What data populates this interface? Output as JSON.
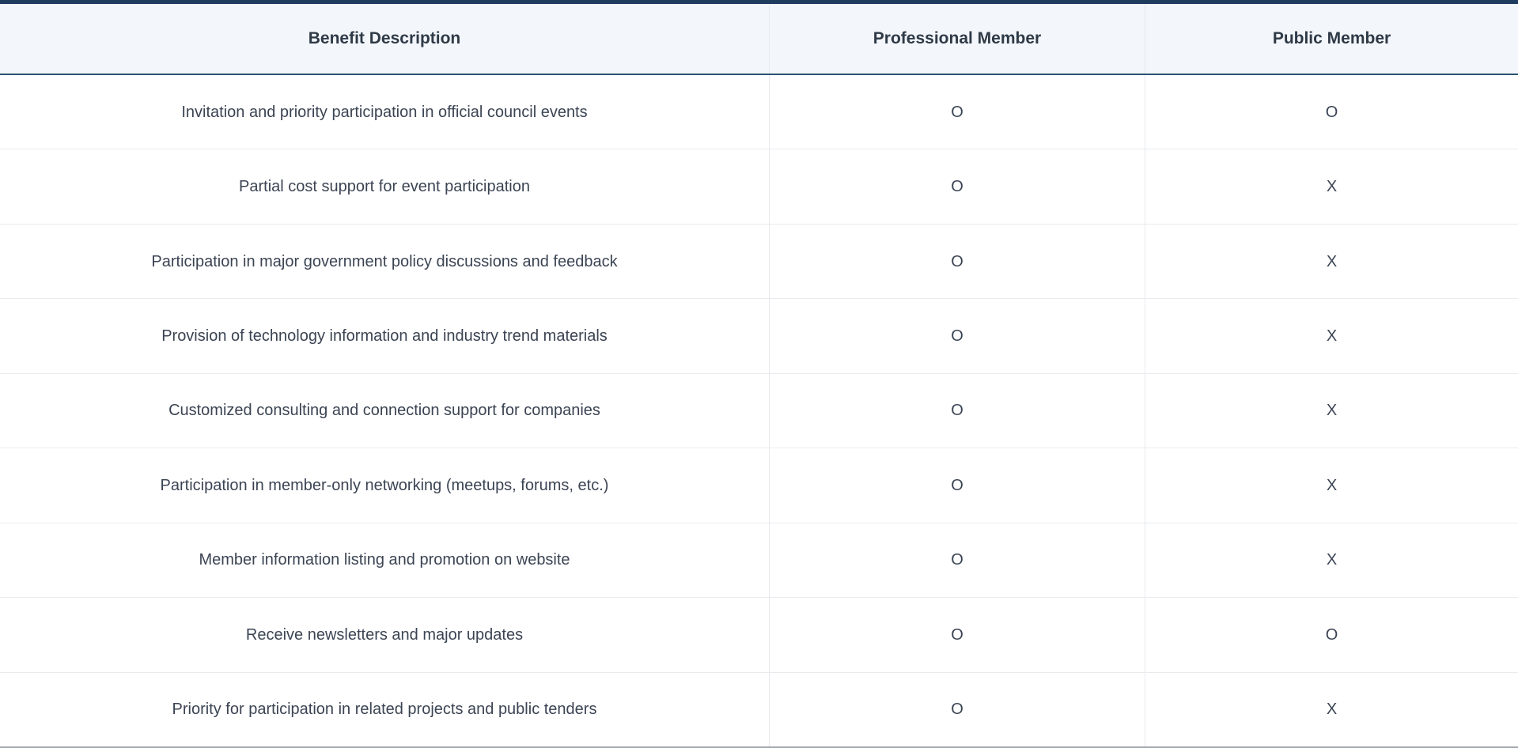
{
  "table": {
    "headers": [
      "Benefit Description",
      "Professional Member",
      "Public Member"
    ],
    "rows": [
      {
        "benefit": "Invitation and priority participation in official council events",
        "professional": "O",
        "public": "O"
      },
      {
        "benefit": "Partial cost support for event participation",
        "professional": "O",
        "public": "X"
      },
      {
        "benefit": "Participation in major government policy discussions and feedback",
        "professional": "O",
        "public": "X"
      },
      {
        "benefit": "Provision of technology information and industry trend materials",
        "professional": "O",
        "public": "X"
      },
      {
        "benefit": "Customized consulting and connection support for companies",
        "professional": "O",
        "public": "X"
      },
      {
        "benefit": "Participation in member-only networking (meetups, forums, etc.)",
        "professional": "O",
        "public": "X"
      },
      {
        "benefit": "Member information listing and promotion on website",
        "professional": "O",
        "public": "X"
      },
      {
        "benefit": "Receive newsletters and major updates",
        "professional": "O",
        "public": "O"
      },
      {
        "benefit": "Priority for participation in related projects and public tenders",
        "professional": "O",
        "public": "X"
      }
    ]
  },
  "colors": {
    "top_border": "#1d3c5e",
    "header_bg": "#f3f6fa",
    "header_rule": "#2b5172",
    "row_divider": "#e9ebee",
    "col_divider": "#e7e9ec",
    "bottom_border": "#a4a9b0",
    "text": "#3b4453",
    "header_text": "#2f3a47"
  }
}
